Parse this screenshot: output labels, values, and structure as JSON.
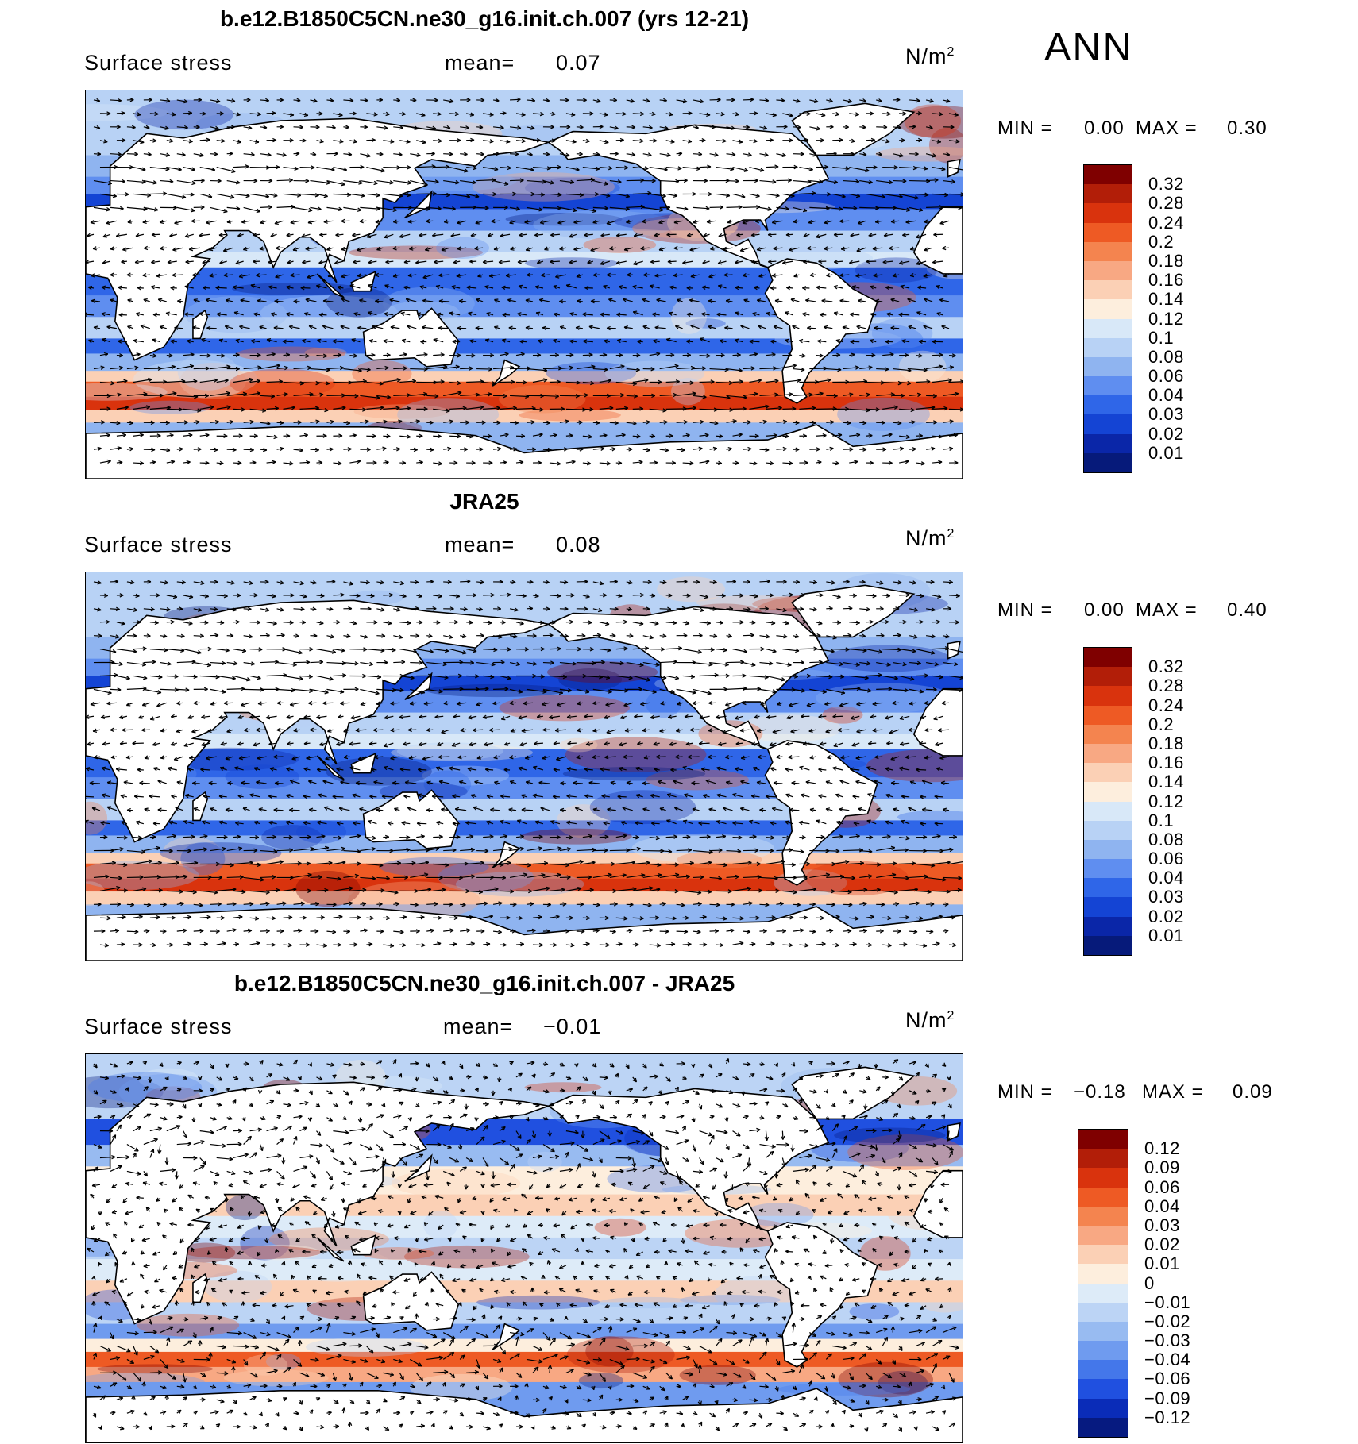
{
  "season": "ANN",
  "units_base": "N/m",
  "units_exp": "2",
  "panels": [
    {
      "title": "b.e12.B1850C5CN.ne30_g16.init.ch.007 (yrs 12-21)",
      "field": "Surface stress",
      "mean_label": "mean=",
      "mean_value": "0.07",
      "min_label": "MIN =",
      "min_value": "0.00",
      "max_label": "MAX =",
      "max_value": "0.30",
      "colorbar_ticks": [
        "0.32",
        "0.28",
        "0.24",
        "0.2",
        "0.18",
        "0.16",
        "0.14",
        "0.12",
        "0.1",
        "0.08",
        "0.06",
        "0.04",
        "0.03",
        "0.02",
        "0.01"
      ]
    },
    {
      "title": "JRA25",
      "field": "Surface stress",
      "mean_label": "mean=",
      "mean_value": "0.08",
      "min_label": "MIN =",
      "min_value": "0.00",
      "max_label": "MAX =",
      "max_value": "0.40",
      "colorbar_ticks": [
        "0.32",
        "0.28",
        "0.24",
        "0.2",
        "0.18",
        "0.16",
        "0.14",
        "0.12",
        "0.1",
        "0.08",
        "0.06",
        "0.04",
        "0.03",
        "0.02",
        "0.01"
      ]
    },
    {
      "title": "b.e12.B1850C5CN.ne30_g16.init.ch.007 - JRA25",
      "field": "Surface stress",
      "mean_label": "mean=",
      "mean_value": "−0.01",
      "min_label": "MIN =",
      "min_value": "−0.18",
      "max_label": "MAX =",
      "max_value": "0.09",
      "colorbar_ticks": [
        "0.12",
        "0.09",
        "0.06",
        "0.04",
        "0.03",
        "0.02",
        "0.01",
        "0",
        "−0.01",
        "−0.02",
        "−0.03",
        "−0.04",
        "−0.06",
        "−0.09",
        "−0.12"
      ]
    }
  ],
  "colors": {
    "abs_scale": [
      "#7f0000",
      "#b21e08",
      "#d9330d",
      "#ee5a24",
      "#f4844f",
      "#f8a883",
      "#fbd0b5",
      "#fdeedd",
      "#d8e8f8",
      "#b8d2f5",
      "#8fb4f0",
      "#5f8ef0",
      "#2f66e8",
      "#1444d4",
      "#0a26a8",
      "#061a7a"
    ],
    "diff_scale": [
      "#7f0000",
      "#b21e08",
      "#d9330d",
      "#ee5a24",
      "#f4844f",
      "#f8a883",
      "#fbd0b5",
      "#fdeedd",
      "#ddebf8",
      "#bcd4f5",
      "#98bbf1",
      "#6f9bef",
      "#4477ea",
      "#2050e0",
      "#0a2cb8",
      "#061a80"
    ],
    "land": "#ffffff",
    "coast": "#000000",
    "arrow": "#000000"
  }
}
